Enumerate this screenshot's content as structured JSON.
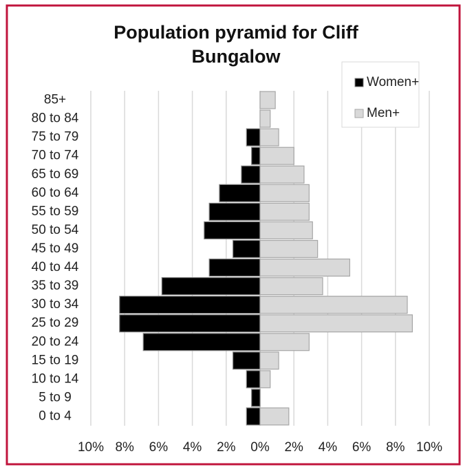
{
  "chart_data": {
    "type": "bar",
    "orientation": "horizontal",
    "title": "Population pyramid for Cliff Bungalow",
    "categories": [
      "85+",
      "80 to 84",
      "75 to 79",
      "70 to 74",
      "65 to 69",
      "60 to 64",
      "55 to 59",
      "50 to 54",
      "45 to 49",
      "40 to 44",
      "35 to 39",
      "30 to 34",
      "25 to 29",
      "20 to 24",
      "15 to 19",
      "10 to 14",
      "5 to 9",
      "0 to 4"
    ],
    "series": [
      {
        "name": "Women+",
        "color": "#000000",
        "values": [
          0,
          0,
          -0.8,
          -0.5,
          -1.1,
          -2.4,
          -3.0,
          -3.3,
          -1.6,
          -3.0,
          -5.8,
          -8.3,
          -8.3,
          -6.9,
          -1.6,
          -0.8,
          -0.5,
          -0.8
        ]
      },
      {
        "name": "Men+",
        "color": "#d9d9d9",
        "values": [
          0.9,
          0.6,
          1.1,
          2.0,
          2.6,
          2.9,
          2.9,
          3.1,
          3.4,
          5.3,
          3.7,
          8.7,
          9.0,
          2.9,
          1.1,
          0.6,
          0,
          1.7
        ]
      }
    ],
    "xlim": [
      -10,
      10
    ],
    "xticks": [
      {
        "value": -10,
        "label": "10%"
      },
      {
        "value": -8,
        "label": "8%"
      },
      {
        "value": -6,
        "label": "6%"
      },
      {
        "value": -4,
        "label": "4%"
      },
      {
        "value": -2,
        "label": "2%"
      },
      {
        "value": 0,
        "label": "0%"
      },
      {
        "value": 2,
        "label": "2%"
      },
      {
        "value": 4,
        "label": "4%"
      },
      {
        "value": 6,
        "label": "6%"
      },
      {
        "value": 8,
        "label": "8%"
      },
      {
        "value": 10,
        "label": "10%"
      }
    ],
    "grid": true,
    "legend": "top-right"
  }
}
